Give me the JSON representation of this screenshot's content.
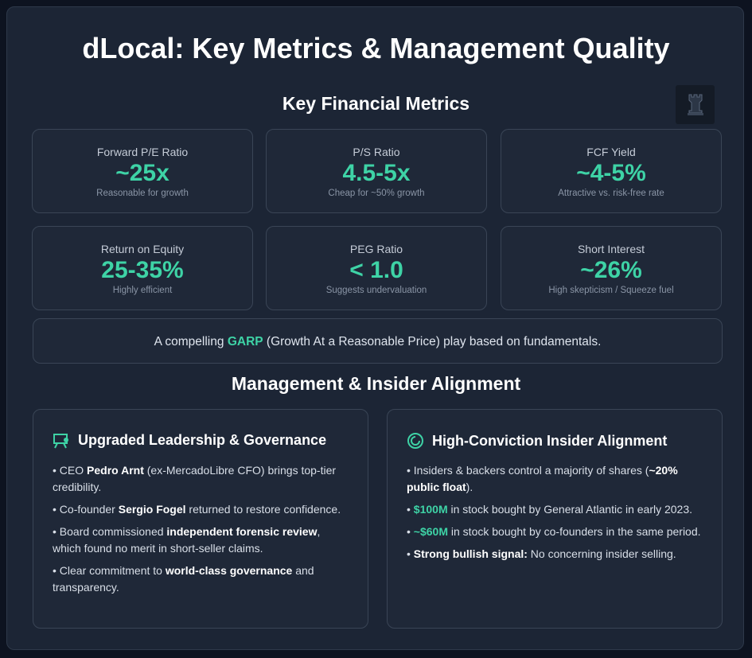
{
  "title": "dLocal: Key Metrics & Management Quality",
  "metrics_section": {
    "title": "Key Financial Metrics",
    "icon": "chess-rook-icon",
    "cards": [
      {
        "label": "Forward P/E Ratio",
        "value": "~25x",
        "note": "Reasonable for growth"
      },
      {
        "label": "P/S Ratio",
        "value": "4.5-5x",
        "note": "Cheap for ~50% growth"
      },
      {
        "label": "FCF Yield",
        "value": "~4-5%",
        "note": "Attractive vs. risk-free rate"
      },
      {
        "label": "Return on Equity",
        "value": "25-35%",
        "note": "Highly efficient"
      },
      {
        "label": "PEG Ratio",
        "value": "< 1.0",
        "note": "Suggests undervaluation"
      },
      {
        "label": "Short Interest",
        "value": "~26%",
        "note": "High skepticism / Squeeze fuel"
      }
    ],
    "garp": {
      "before": "A compelling ",
      "highlight": "GARP",
      "after": " (Growth At a Reasonable Price) play based on fundamentals."
    }
  },
  "management_section": {
    "title": "Management & Insider Alignment",
    "leadership": {
      "icon": "presentation-icon",
      "title": "Upgraded Leadership & Governance",
      "bullets": [
        {
          "pre": "• CEO ",
          "bold": "Pedro Arnt",
          "post": " (ex-MercadoLibre CFO) brings top-tier credibility."
        },
        {
          "pre": "• Co-founder ",
          "bold": "Sergio Fogel",
          "post": " returned to restore confidence."
        },
        {
          "pre": "• Board commissioned ",
          "bold": "independent forensic review",
          "post": ", which found no merit in short-seller claims."
        },
        {
          "pre": "• Clear commitment to ",
          "bold": "world-class governance",
          "post": " and transparency."
        }
      ]
    },
    "insider": {
      "icon": "spiral-icon",
      "title": "High-Conviction Insider Alignment",
      "bullets": [
        {
          "pre": "• Insiders & backers control a majority of shares (",
          "bold": "~20% public float",
          "post": ")."
        },
        {
          "pre": "• ",
          "bold": "$100M",
          "post": " in stock bought by General Atlantic in early 2023."
        },
        {
          "pre": "• ",
          "bold": "~$60M",
          "post": " in stock bought by co-founders in the same period."
        },
        {
          "pre": "• ",
          "bold": "Strong bullish signal:",
          "post": " No concerning insider selling."
        }
      ]
    }
  },
  "colors": {
    "accent": "#3ed3a6",
    "panel": "#1c2535",
    "background": "#0d1320"
  }
}
